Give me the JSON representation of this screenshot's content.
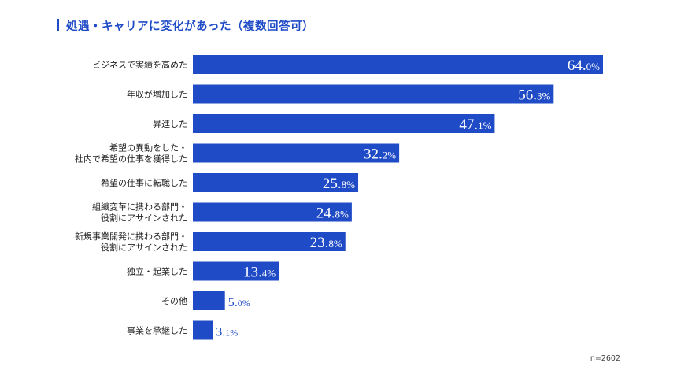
{
  "title": "処遇・キャリアに変化があった（複数回答可）",
  "note": "n=2602",
  "colors": {
    "accent": "#1f4bc6",
    "bar": "#1f4bc6"
  },
  "chart_data": {
    "type": "bar",
    "orientation": "horizontal",
    "unit": "%",
    "categories": [
      [
        "ビジネスで実績を高めた"
      ],
      [
        "年収が増加した"
      ],
      [
        "昇進した"
      ],
      [
        "希望の異動をした・",
        "社内で希望の仕事を獲得した"
      ],
      [
        "希望の仕事に転職した"
      ],
      [
        "組織変革に携わる部門・",
        "役割にアサインされた"
      ],
      [
        "新規事業開発に携わる部門・",
        "役割にアサインされた"
      ],
      [
        "独立・起業した"
      ],
      [
        "その他"
      ],
      [
        "事業を承継した"
      ]
    ],
    "values": [
      64.0,
      56.3,
      47.1,
      32.2,
      25.8,
      24.8,
      23.8,
      13.4,
      5.0,
      3.1
    ],
    "value_labels": [
      {
        "int": "64.",
        "dec": "0%"
      },
      {
        "int": "56.",
        "dec": "3%"
      },
      {
        "int": "47.",
        "dec": "1%"
      },
      {
        "int": "32.",
        "dec": "2%"
      },
      {
        "int": "25.",
        "dec": "8%"
      },
      {
        "int": "24.",
        "dec": "8%"
      },
      {
        "int": "23.",
        "dec": "8%"
      },
      {
        "int": "13.",
        "dec": "4%"
      },
      {
        "int": "5.",
        "dec": "0%"
      },
      {
        "int": "3.",
        "dec": "1%"
      }
    ],
    "xlim": [
      0,
      64
    ],
    "grid": false,
    "legend": "none"
  }
}
